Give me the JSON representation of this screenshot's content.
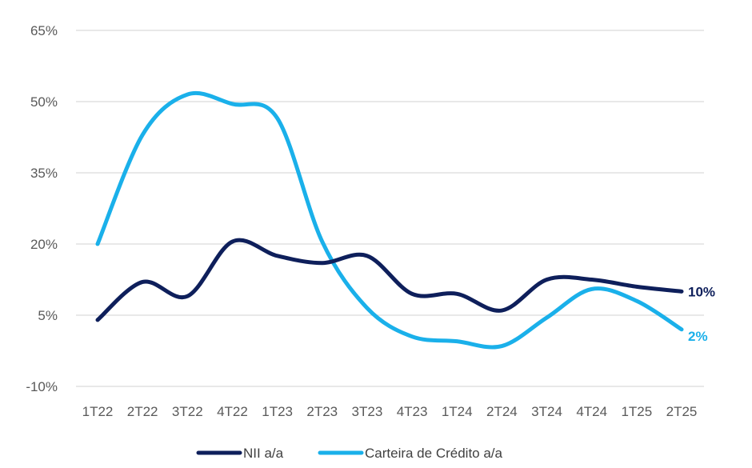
{
  "chart_data": {
    "type": "line",
    "categories": [
      "1T22",
      "2T22",
      "3T22",
      "4T22",
      "1T23",
      "2T23",
      "3T23",
      "4T23",
      "1T24",
      "2T24",
      "3T24",
      "4T24",
      "1T25",
      "2T25"
    ],
    "y_ticks": [
      "65%",
      "50%",
      "35%",
      "20%",
      "5%",
      "-10%"
    ],
    "ylim": [
      -10,
      65
    ],
    "grid": true,
    "legend_position": "bottom",
    "series": [
      {
        "name": "NII a/a",
        "color": "#0e1f5b",
        "values": [
          4,
          12,
          9,
          20.5,
          17.5,
          16,
          17.5,
          9.5,
          9.5,
          6,
          12.5,
          12.5,
          11,
          10
        ],
        "end_label": "10%"
      },
      {
        "name": "Carteira de Crédito a/a",
        "color": "#1ab0ea",
        "values": [
          20,
          43,
          51.5,
          49.5,
          46.5,
          20.5,
          6.5,
          0.5,
          -0.5,
          -1.5,
          4.5,
          10.5,
          8,
          2
        ],
        "end_label": "2%"
      }
    ]
  }
}
